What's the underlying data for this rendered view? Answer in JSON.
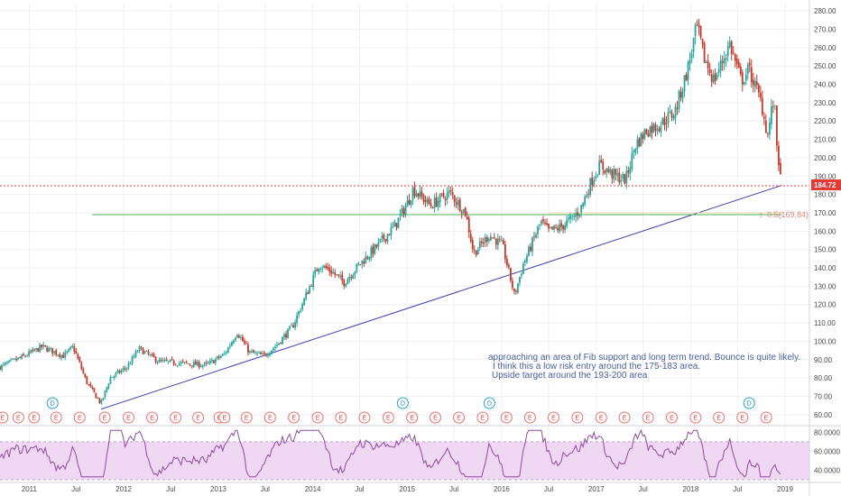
{
  "chart_data": {
    "type": "candlestick",
    "x_ticks": [
      "2011",
      "Jul",
      "2012",
      "Jul",
      "2013",
      "Jul",
      "2014",
      "Jul",
      "2015",
      "Jul",
      "2016",
      "Jul",
      "2017",
      "Jul",
      "2018",
      "Jul",
      "2019"
    ],
    "x_tick_dates": [
      "2011-01-01",
      "2011-07-01",
      "2012-01-01",
      "2012-07-01",
      "2013-01-01",
      "2013-07-01",
      "2014-01-01",
      "2014-07-01",
      "2015-01-01",
      "2015-07-01",
      "2016-01-01",
      "2016-07-01",
      "2017-01-01",
      "2017-07-01",
      "2018-01-01",
      "2018-07-01",
      "2019-01-01"
    ],
    "x_range": [
      "2010-09-10",
      "2019-04-05"
    ],
    "price_ticks": [
      "280.00",
      "270.00",
      "260.00",
      "250.00",
      "240.00",
      "230.00",
      "220.00",
      "210.00",
      "200.00",
      "190.00",
      "180.00",
      "170.00",
      "160.00",
      "150.00",
      "140.00",
      "130.00",
      "120.00",
      "110.00",
      "100.00",
      "90.00",
      "80.00",
      "70.00",
      "60.00"
    ],
    "price_range": [
      55,
      284
    ],
    "rsi_ticks": [
      "80.0000",
      "60.0000",
      "40.0000"
    ],
    "rsi_range": [
      30,
      85
    ],
    "rsi_band": [
      30,
      70
    ],
    "grid": true,
    "up_color": "#26a69a",
    "down_color": "#c0392b",
    "rsi_color": "#8e4b9a",
    "rsi_band_color": "#f0d8f5",
    "price_key": [
      [
        "2010-09-10",
        86
      ],
      [
        "2010-12-15",
        92
      ],
      [
        "2011-02-20",
        97
      ],
      [
        "2011-05-15",
        92
      ],
      [
        "2011-06-20",
        97
      ],
      [
        "2011-08-10",
        78
      ],
      [
        "2011-10-05",
        66
      ],
      [
        "2011-11-10",
        80
      ],
      [
        "2012-01-15",
        86
      ],
      [
        "2012-03-01",
        96
      ],
      [
        "2012-05-15",
        89
      ],
      [
        "2012-08-15",
        88
      ],
      [
        "2012-11-15",
        87
      ],
      [
        "2013-01-25",
        93
      ],
      [
        "2013-03-15",
        105
      ],
      [
        "2013-05-01",
        94
      ],
      [
        "2013-06-25",
        92
      ],
      [
        "2013-08-15",
        98
      ],
      [
        "2013-10-15",
        108
      ],
      [
        "2013-12-15",
        128
      ],
      [
        "2014-01-25",
        142
      ],
      [
        "2014-03-15",
        138
      ],
      [
        "2014-05-01",
        132
      ],
      [
        "2014-07-01",
        142
      ],
      [
        "2014-09-01",
        151
      ],
      [
        "2014-11-15",
        163
      ],
      [
        "2015-01-01",
        175
      ],
      [
        "2015-01-25",
        183
      ],
      [
        "2015-04-01",
        174
      ],
      [
        "2015-06-15",
        181
      ],
      [
        "2015-08-15",
        170
      ],
      [
        "2015-09-15",
        148
      ],
      [
        "2015-11-15",
        158
      ],
      [
        "2016-01-05",
        152
      ],
      [
        "2016-02-20",
        125
      ],
      [
        "2016-03-25",
        142
      ],
      [
        "2016-06-01",
        165
      ],
      [
        "2016-07-01",
        160
      ],
      [
        "2016-08-15",
        162
      ],
      [
        "2016-10-01",
        167
      ],
      [
        "2016-11-01",
        172
      ],
      [
        "2016-12-15",
        188
      ],
      [
        "2017-01-15",
        196
      ],
      [
        "2017-03-15",
        190
      ],
      [
        "2017-04-25",
        188
      ],
      [
        "2017-06-01",
        207
      ],
      [
        "2017-07-15",
        215
      ],
      [
        "2017-09-01",
        218
      ],
      [
        "2017-11-01",
        225
      ],
      [
        "2017-12-20",
        248
      ],
      [
        "2018-01-25",
        272
      ],
      [
        "2018-02-20",
        255
      ],
      [
        "2018-04-01",
        242
      ],
      [
        "2018-06-01",
        262
      ],
      [
        "2018-07-15",
        242
      ],
      [
        "2018-08-15",
        248
      ],
      [
        "2018-10-01",
        230
      ],
      [
        "2018-10-25",
        212
      ],
      [
        "2018-11-10",
        226
      ],
      [
        "2018-11-20",
        232
      ],
      [
        "2018-12-01",
        205
      ],
      [
        "2018-12-20",
        184.72
      ]
    ],
    "lines": [
      {
        "from": [
          "2011-10-05",
          63
        ],
        "to": [
          "2018-12-20",
          185
        ],
        "color": "#3f3fb0",
        "style": "solid"
      },
      {
        "from": [
          "2011-09-01",
          169
        ],
        "to": [
          "2018-12-20",
          169
        ],
        "color": "#4caf50",
        "style": "solid"
      },
      {
        "from": [
          "2016-07-01",
          170
        ],
        "to": [
          "2018-12-20",
          170
        ],
        "color": "#e8d8a8",
        "style": "solid"
      },
      {
        "from": [
          "2010-09-10",
          184.72
        ],
        "to": [
          "2019-04-05",
          184.72
        ],
        "color": "#e53935",
        "style": "dotted"
      }
    ],
    "last_price": "184.72",
    "fib_label": "0.5(169.84)",
    "annotation": [
      "approaching an area of Fib support and long term trend. Bounce is quite likely.",
      "I think this a low risk entry around the 175-183 area.",
      "Upside target around the 193-200 area"
    ],
    "dividend_marker": "D",
    "dividend_dates": [
      "2011-04-01",
      "2014-12-15",
      "2015-11-15",
      "2018-08-15"
    ],
    "earnings_marker": "E",
    "earnings_dates": [
      "2010-09-20",
      "2010-11-20",
      "2011-01-20",
      "2011-04-15",
      "2011-07-15",
      "2011-10-20",
      "2012-01-20",
      "2012-04-20",
      "2012-07-20",
      "2012-10-15",
      "2013-01-05",
      "2013-01-25",
      "2013-04-20",
      "2013-07-20",
      "2013-10-20",
      "2014-01-20",
      "2014-04-20",
      "2014-07-20",
      "2014-10-20",
      "2015-01-20",
      "2015-04-20",
      "2015-07-20",
      "2015-10-20",
      "2016-01-20",
      "2016-04-20",
      "2016-07-20",
      "2016-10-20",
      "2017-01-20",
      "2017-04-20",
      "2017-07-20",
      "2017-10-20",
      "2018-01-20",
      "2018-04-20",
      "2018-07-20",
      "2018-10-20"
    ]
  }
}
